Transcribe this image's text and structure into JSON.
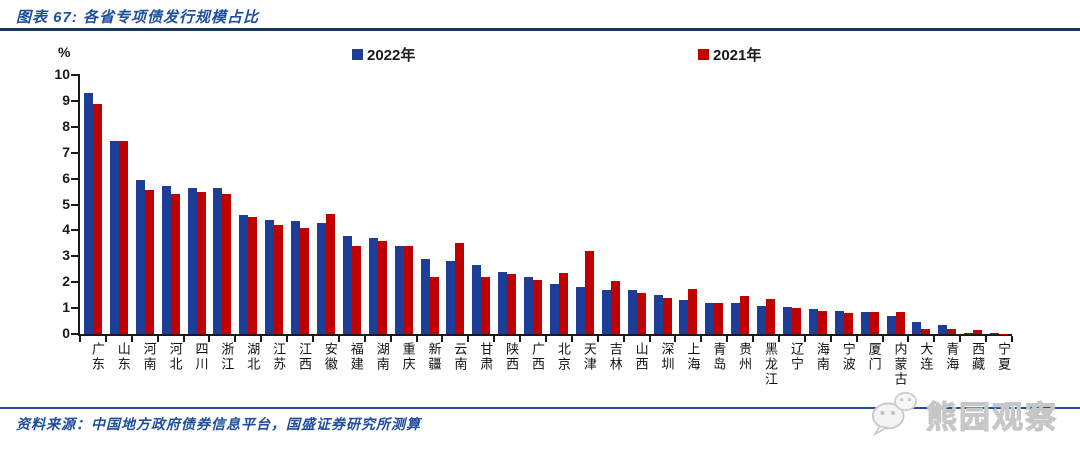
{
  "header": {
    "title": "图表 67: 各省专项债发行规模占比"
  },
  "chart_data": {
    "type": "bar",
    "title": "各省专项债发行规模占比",
    "unit_label": "%",
    "xlabel": "",
    "ylabel": "%",
    "ylim": [
      0,
      10
    ],
    "yticks": [
      0,
      1,
      2,
      3,
      4,
      5,
      6,
      7,
      8,
      9,
      10
    ],
    "grid": false,
    "legend_position": "top",
    "categories": [
      "广东",
      "山东",
      "河南",
      "河北",
      "四川",
      "浙江",
      "湖北",
      "江苏",
      "江西",
      "安徽",
      "福建",
      "湖南",
      "重庆",
      "新疆",
      "云南",
      "甘肃",
      "陕西",
      "广西",
      "北京",
      "天津",
      "吉林",
      "山西",
      "深圳",
      "上海",
      "青岛",
      "贵州",
      "黑龙江",
      "辽宁",
      "海南",
      "宁波",
      "厦门",
      "内蒙古",
      "大连",
      "青海",
      "西藏",
      "宁夏"
    ],
    "series": [
      {
        "name": "2022年",
        "color": "#1e3d96",
        "values": [
          9.3,
          7.45,
          5.95,
          5.7,
          5.65,
          5.65,
          4.6,
          4.4,
          4.35,
          4.3,
          3.8,
          3.7,
          3.4,
          2.9,
          2.8,
          2.65,
          2.4,
          2.2,
          1.95,
          1.8,
          1.7,
          1.7,
          1.5,
          1.3,
          1.2,
          1.2,
          1.1,
          1.05,
          0.95,
          0.9,
          0.85,
          0.7,
          0.45,
          0.35,
          0.05,
          0.02
        ]
      },
      {
        "name": "2021年",
        "color": "#c00000",
        "values": [
          8.9,
          7.45,
          5.55,
          5.4,
          5.5,
          5.4,
          4.5,
          4.2,
          4.1,
          4.65,
          3.4,
          3.6,
          3.4,
          2.2,
          3.5,
          2.2,
          2.3,
          2.1,
          2.35,
          3.2,
          2.05,
          1.6,
          1.4,
          1.75,
          1.2,
          1.45,
          1.35,
          1.0,
          0.9,
          0.8,
          0.85,
          0.85,
          0.2,
          0.2,
          0.15,
          0.01
        ]
      }
    ]
  },
  "footer": {
    "source": "资料来源：中国地方政府债券信息平台，国盛证券研究所测算"
  },
  "watermark": {
    "label": "熊园观察",
    "icon": "wechat-icon"
  }
}
